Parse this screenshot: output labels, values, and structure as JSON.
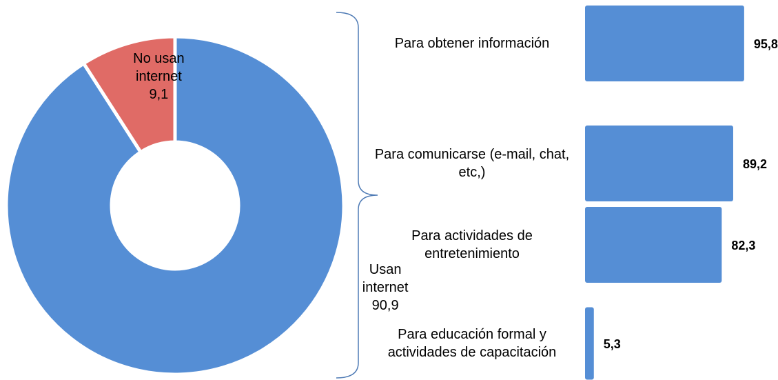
{
  "chart_data": [
    {
      "type": "donut",
      "categories": [
        "Usan internet",
        "No usan internet"
      ],
      "values": [
        90.9,
        9.1
      ],
      "value_labels": [
        "90,9",
        "9,1"
      ],
      "colors": [
        "#558ed5",
        "#e06b66"
      ]
    },
    {
      "type": "hbar",
      "categories": [
        "Para obtener información",
        "Para comunicarse (e-mail, chat, etc,)",
        "Para actividades de entretenimiento",
        "Para educación formal y actividades de capacitación"
      ],
      "values": [
        95.8,
        89.2,
        82.3,
        5.3
      ],
      "value_labels": [
        "95,8",
        "89,2",
        "82,3",
        "5,3"
      ],
      "color": "#558ed5",
      "xlim": [
        0,
        100
      ]
    }
  ]
}
